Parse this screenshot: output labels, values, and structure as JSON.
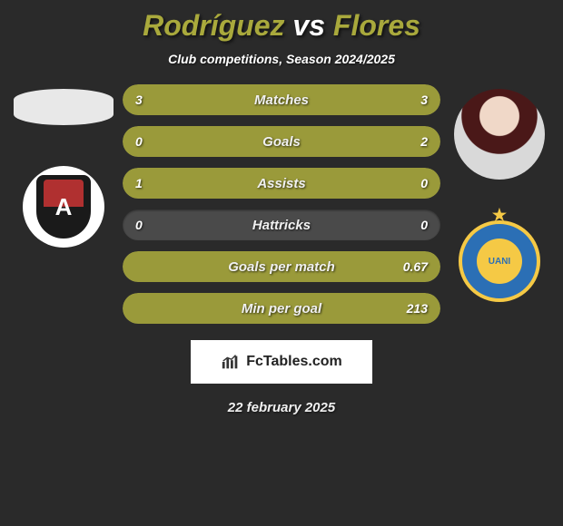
{
  "title": {
    "player1": "Rodríguez",
    "vs": "vs",
    "player2": "Flores"
  },
  "subtitle": "Club competitions, Season 2024/2025",
  "date": "22 february 2025",
  "branding": {
    "text": "FcTables.com"
  },
  "colors": {
    "accent": "#9a9a3a",
    "title_accent": "#a9a93c",
    "background": "#2a2a2a",
    "bar_bg": "#4a4a4a"
  },
  "stats": [
    {
      "label": "Matches",
      "left_value": "3",
      "right_value": "3",
      "left_pct": 50,
      "right_pct": 50
    },
    {
      "label": "Goals",
      "left_value": "0",
      "right_value": "2",
      "left_pct": 18,
      "right_pct": 82
    },
    {
      "label": "Assists",
      "left_value": "1",
      "right_value": "0",
      "left_pct": 85,
      "right_pct": 15
    },
    {
      "label": "Hattricks",
      "left_value": "0",
      "right_value": "0",
      "left_pct": 0,
      "right_pct": 0
    },
    {
      "label": "Goals per match",
      "left_value": "",
      "right_value": "0.67",
      "left_pct": 0,
      "right_pct": 100
    },
    {
      "label": "Min per goal",
      "left_value": "",
      "right_value": "213",
      "left_pct": 0,
      "right_pct": 100
    }
  ]
}
